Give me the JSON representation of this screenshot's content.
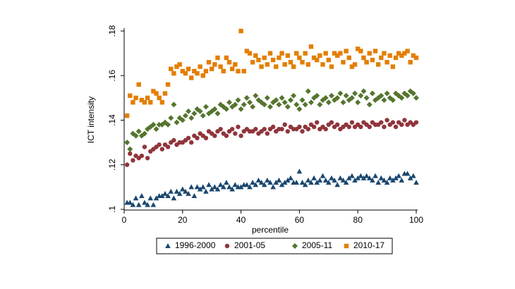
{
  "chart_data": {
    "type": "scatter",
    "x_label": "percentile",
    "y_label": "ICT intensity",
    "xlim": [
      0,
      100
    ],
    "xticks": [
      0,
      20,
      40,
      60,
      80,
      100
    ],
    "ylim": [
      0.1,
      0.18
    ],
    "yticks": [
      {
        "value": 0.1,
        "label": ".1"
      },
      {
        "value": 0.12,
        "label": ".12"
      },
      {
        "value": 0.14,
        "label": ".14"
      },
      {
        "value": 0.16,
        "label": ".16"
      },
      {
        "value": 0.18,
        "label": ".18"
      }
    ],
    "grid": false,
    "legend": "bottom",
    "x": [
      1,
      2,
      3,
      4,
      5,
      6,
      7,
      8,
      9,
      10,
      11,
      12,
      13,
      14,
      15,
      16,
      17,
      18,
      19,
      20,
      21,
      22,
      23,
      24,
      25,
      26,
      27,
      28,
      29,
      30,
      31,
      32,
      33,
      34,
      35,
      36,
      37,
      38,
      39,
      40,
      41,
      42,
      43,
      44,
      45,
      46,
      47,
      48,
      49,
      50,
      51,
      52,
      53,
      54,
      55,
      56,
      57,
      58,
      59,
      60,
      61,
      62,
      63,
      64,
      65,
      66,
      67,
      68,
      69,
      70,
      71,
      72,
      73,
      74,
      75,
      76,
      77,
      78,
      79,
      80,
      81,
      82,
      83,
      84,
      85,
      86,
      87,
      88,
      89,
      90,
      91,
      92,
      93,
      94,
      95,
      96,
      97,
      98,
      99,
      100
    ],
    "series": [
      {
        "name": "1996-2000",
        "color": "#1a476f",
        "marker": "triangle",
        "values": [
          0.103,
          0.103,
          0.102,
          0.105,
          0.102,
          0.106,
          0.103,
          0.102,
          0.105,
          0.102,
          0.105,
          0.106,
          0.106,
          0.107,
          0.106,
          0.108,
          0.105,
          0.108,
          0.107,
          0.109,
          0.108,
          0.107,
          0.11,
          0.106,
          0.11,
          0.109,
          0.11,
          0.108,
          0.111,
          0.109,
          0.11,
          0.109,
          0.111,
          0.11,
          0.112,
          0.11,
          0.109,
          0.111,
          0.11,
          0.11,
          0.111,
          0.111,
          0.11,
          0.112,
          0.111,
          0.113,
          0.112,
          0.111,
          0.113,
          0.112,
          0.11,
          0.112,
          0.113,
          0.111,
          0.112,
          0.113,
          0.114,
          0.112,
          0.112,
          0.117,
          0.112,
          0.111,
          0.113,
          0.112,
          0.114,
          0.112,
          0.113,
          0.115,
          0.113,
          0.112,
          0.114,
          0.113,
          0.111,
          0.114,
          0.113,
          0.112,
          0.114,
          0.115,
          0.113,
          0.114,
          0.115,
          0.114,
          0.115,
          0.114,
          0.113,
          0.115,
          0.112,
          0.114,
          0.113,
          0.112,
          0.114,
          0.113,
          0.114,
          0.115,
          0.113,
          0.116,
          0.116,
          0.114,
          0.115,
          0.112
        ]
      },
      {
        "name": "2001-05",
        "color": "#90353b",
        "marker": "circle",
        "values": [
          0.12,
          0.125,
          0.122,
          0.124,
          0.123,
          0.124,
          0.128,
          0.123,
          0.126,
          0.127,
          0.128,
          0.129,
          0.127,
          0.129,
          0.128,
          0.13,
          0.131,
          0.129,
          0.13,
          0.13,
          0.131,
          0.132,
          0.13,
          0.133,
          0.132,
          0.134,
          0.133,
          0.132,
          0.135,
          0.134,
          0.133,
          0.135,
          0.136,
          0.134,
          0.133,
          0.135,
          0.136,
          0.134,
          0.137,
          0.133,
          0.135,
          0.136,
          0.135,
          0.135,
          0.136,
          0.134,
          0.135,
          0.136,
          0.134,
          0.136,
          0.137,
          0.135,
          0.136,
          0.136,
          0.138,
          0.135,
          0.137,
          0.136,
          0.136,
          0.137,
          0.135,
          0.137,
          0.136,
          0.138,
          0.137,
          0.139,
          0.136,
          0.137,
          0.136,
          0.138,
          0.139,
          0.137,
          0.138,
          0.136,
          0.137,
          0.138,
          0.137,
          0.139,
          0.137,
          0.138,
          0.137,
          0.139,
          0.138,
          0.137,
          0.139,
          0.138,
          0.138,
          0.139,
          0.137,
          0.14,
          0.138,
          0.139,
          0.137,
          0.139,
          0.138,
          0.14,
          0.138,
          0.139,
          0.138,
          0.139
        ]
      },
      {
        "name": "2005-11",
        "color": "#55752f",
        "marker": "diamond",
        "values": [
          0.13,
          0.127,
          0.134,
          0.133,
          0.135,
          0.133,
          0.134,
          0.136,
          0.137,
          0.138,
          0.136,
          0.138,
          0.138,
          0.139,
          0.138,
          0.141,
          0.147,
          0.139,
          0.141,
          0.14,
          0.142,
          0.144,
          0.141,
          0.143,
          0.145,
          0.144,
          0.142,
          0.146,
          0.143,
          0.144,
          0.145,
          0.143,
          0.147,
          0.146,
          0.145,
          0.148,
          0.146,
          0.147,
          0.149,
          0.145,
          0.147,
          0.15,
          0.148,
          0.146,
          0.151,
          0.149,
          0.148,
          0.147,
          0.15,
          0.146,
          0.148,
          0.149,
          0.147,
          0.15,
          0.148,
          0.146,
          0.149,
          0.151,
          0.147,
          0.145,
          0.149,
          0.147,
          0.153,
          0.148,
          0.15,
          0.151,
          0.147,
          0.149,
          0.15,
          0.148,
          0.151,
          0.149,
          0.15,
          0.152,
          0.148,
          0.151,
          0.149,
          0.15,
          0.152,
          0.148,
          0.151,
          0.153,
          0.15,
          0.147,
          0.152,
          0.149,
          0.15,
          0.151,
          0.149,
          0.152,
          0.15,
          0.149,
          0.152,
          0.151,
          0.15,
          0.152,
          0.151,
          0.153,
          0.152,
          0.15
        ]
      },
      {
        "name": "2010-17",
        "color": "#e37e00",
        "marker": "square",
        "values": [
          0.142,
          0.151,
          0.148,
          0.15,
          0.156,
          0.149,
          0.148,
          0.15,
          0.148,
          0.153,
          0.152,
          0.15,
          0.148,
          0.152,
          0.156,
          0.163,
          0.161,
          0.164,
          0.165,
          0.162,
          0.161,
          0.163,
          0.159,
          0.162,
          0.161,
          0.164,
          0.16,
          0.162,
          0.166,
          0.163,
          0.165,
          0.168,
          0.164,
          0.162,
          0.168,
          0.166,
          0.163,
          0.165,
          0.162,
          0.18,
          0.162,
          0.171,
          0.17,
          0.166,
          0.169,
          0.167,
          0.164,
          0.168,
          0.165,
          0.17,
          0.167,
          0.164,
          0.168,
          0.17,
          0.165,
          0.169,
          0.166,
          0.164,
          0.17,
          0.168,
          0.166,
          0.17,
          0.165,
          0.173,
          0.168,
          0.167,
          0.169,
          0.165,
          0.17,
          0.167,
          0.164,
          0.17,
          0.169,
          0.17,
          0.166,
          0.171,
          0.168,
          0.164,
          0.165,
          0.172,
          0.171,
          0.168,
          0.166,
          0.17,
          0.167,
          0.171,
          0.165,
          0.168,
          0.17,
          0.166,
          0.169,
          0.164,
          0.168,
          0.17,
          0.169,
          0.17,
          0.171,
          0.166,
          0.169,
          0.168
        ]
      }
    ]
  }
}
